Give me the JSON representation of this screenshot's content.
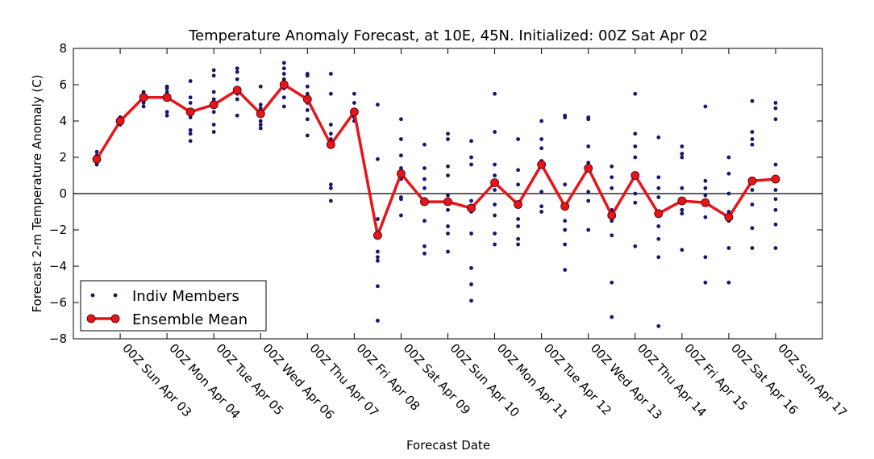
{
  "chart_data": {
    "type": "line",
    "title": "Temperature Anomaly Forecast, at 10E, 45N.  Initialized: 00Z Sat Apr 02",
    "xlabel": "Forecast Date",
    "ylabel": "Forecast 2-m Temperature Anomaly (C)",
    "xlim": [
      0,
      384
    ],
    "ylim": [
      -8,
      8
    ],
    "yticks": [
      {
        "value": -8,
        "label": "−8"
      },
      {
        "value": -6,
        "label": "−6"
      },
      {
        "value": -4,
        "label": "−4"
      },
      {
        "value": -2,
        "label": "−2"
      },
      0,
      2,
      4,
      6,
      8
    ],
    "xticks": [
      {
        "value": 24,
        "label": "00Z Sun Apr 03"
      },
      {
        "value": 48,
        "label": "00Z Mon Apr 04"
      },
      {
        "value": 72,
        "label": "00Z Tue Apr 05"
      },
      {
        "value": 96,
        "label": "00Z Wed Apr 06"
      },
      {
        "value": 120,
        "label": "00Z Thu Apr 07"
      },
      {
        "value": 144,
        "label": "00Z Fri Apr 08"
      },
      {
        "value": 168,
        "label": "00Z Sat Apr 09"
      },
      {
        "value": 192,
        "label": "00Z Sun Apr 10"
      },
      {
        "value": 216,
        "label": "00Z Mon Apr 11"
      },
      {
        "value": 240,
        "label": "00Z Tue Apr 12"
      },
      {
        "value": 264,
        "label": "00Z Wed Apr 13"
      },
      {
        "value": 288,
        "label": "00Z Thu Apr 14"
      },
      {
        "value": 312,
        "label": "00Z Fri Apr 15"
      },
      {
        "value": 336,
        "label": "00Z Sat Apr 16"
      },
      {
        "value": 360,
        "label": "00Z Sun Apr 17"
      }
    ],
    "hline": 0,
    "legend": "lower left",
    "x": [
      12,
      24,
      36,
      48,
      60,
      72,
      84,
      96,
      108,
      120,
      132,
      144,
      156,
      168,
      180,
      192,
      204,
      216,
      228,
      240,
      252,
      264,
      276,
      288,
      300,
      312,
      324,
      336,
      348,
      360
    ],
    "series": [
      {
        "name": "Indiv Members",
        "type": "scatter",
        "color": "#16166e",
        "values": [
          [
            2.3,
            2.1,
            1.9,
            1.8,
            1.7,
            1.6,
            2.0
          ],
          [
            4.2,
            4.1,
            4.0,
            3.9,
            3.8,
            4.2
          ],
          [
            5.6,
            5.5,
            5.4,
            5.3,
            5.2,
            5.0,
            4.8
          ],
          [
            5.9,
            5.8,
            5.6,
            5.4,
            5.2,
            4.5,
            4.3
          ],
          [
            6.2,
            5.3,
            5.0,
            4.5,
            4.2,
            3.5,
            3.3,
            2.9
          ],
          [
            6.8,
            6.5,
            5.6,
            5.2,
            4.8,
            4.5,
            3.8,
            3.4
          ],
          [
            6.9,
            6.7,
            6.3,
            5.8,
            5.5,
            5.2,
            4.3
          ],
          [
            5.9,
            4.9,
            4.7,
            4.3,
            4.0,
            3.8,
            3.6
          ],
          [
            7.2,
            6.9,
            6.6,
            6.3,
            6.0,
            5.8,
            5.3,
            4.8
          ],
          [
            6.6,
            6.5,
            5.9,
            5.5,
            5.0,
            4.6,
            4.1,
            3.2
          ],
          [
            6.6,
            5.5,
            3.8,
            3.3,
            3.0,
            2.6,
            0.5,
            0.3,
            -0.4
          ],
          [
            5.5,
            5.0,
            4.6,
            4.4,
            4.2,
            4.0
          ],
          [
            4.9,
            1.9,
            -1.4,
            -2.4,
            -3.2,
            -3.5,
            -3.7,
            -5.1,
            -7.0
          ],
          [
            4.1,
            3.0,
            2.1,
            1.4,
            0.8,
            -0.2,
            -0.3,
            -1.2
          ],
          [
            2.7,
            1.4,
            0.8,
            0.3,
            -0.3,
            -1.5,
            -2.9,
            -3.3
          ],
          [
            3.3,
            3.0,
            1.5,
            1.0,
            -0.1,
            -0.9,
            -1.8,
            -2.2,
            -3.2
          ],
          [
            2.9,
            2.0,
            1.6,
            -0.4,
            -1.0,
            -2.2,
            -4.1,
            -5.0,
            -5.9
          ],
          [
            5.5,
            3.4,
            1.6,
            1.0,
            0.2,
            -0.6,
            -1.2,
            -2.2,
            -2.8
          ],
          [
            3.0,
            1.3,
            0.5,
            -1.4,
            -1.8,
            -2.5,
            -2.8
          ],
          [
            4.0,
            3.0,
            2.5,
            1.8,
            0.1,
            -0.7,
            -1.0
          ],
          [
            4.3,
            4.2,
            0.5,
            -0.8,
            -1.5,
            -2.0,
            -2.8,
            -4.2
          ],
          [
            4.2,
            4.1,
            2.6,
            1.7,
            0.1,
            -0.4,
            -2.0
          ],
          [
            1.5,
            0.9,
            0.3,
            -0.9,
            -1.5,
            -2.3,
            -4.9,
            -6.8
          ],
          [
            5.5,
            3.3,
            2.6,
            2.0,
            0.0,
            -0.5,
            -2.9
          ],
          [
            3.1,
            0.9,
            0.3,
            -0.2,
            -1.8,
            -2.5,
            -3.5,
            -7.3
          ],
          [
            2.6,
            2.2,
            2.0,
            0.3,
            -0.9,
            -1.1,
            -3.1
          ],
          [
            4.8,
            0.7,
            0.3,
            -0.1,
            -1.3,
            -3.5,
            -4.9
          ],
          [
            2.0,
            1.1,
            0.0,
            -1.0,
            -1.5,
            -3.0,
            -4.9
          ],
          [
            5.1,
            3.4,
            3.0,
            2.7,
            0.2,
            -0.6,
            -1.9,
            -3.0
          ],
          [
            5.0,
            4.7,
            4.1,
            1.6,
            0.2,
            -0.3,
            -0.9,
            -1.7,
            -3.0
          ]
        ]
      },
      {
        "name": "Ensemble Mean",
        "type": "line",
        "color": "#e8141a",
        "values": [
          1.9,
          4.0,
          5.3,
          5.3,
          4.5,
          4.9,
          5.7,
          4.4,
          6.0,
          5.2,
          2.7,
          4.5,
          -2.3,
          1.1,
          -0.45,
          -0.45,
          -0.8,
          0.6,
          -0.6,
          1.6,
          -0.7,
          1.4,
          -1.2,
          1.0,
          -1.1,
          -0.4,
          -0.5,
          -1.3,
          0.7,
          0.8
        ]
      }
    ]
  }
}
